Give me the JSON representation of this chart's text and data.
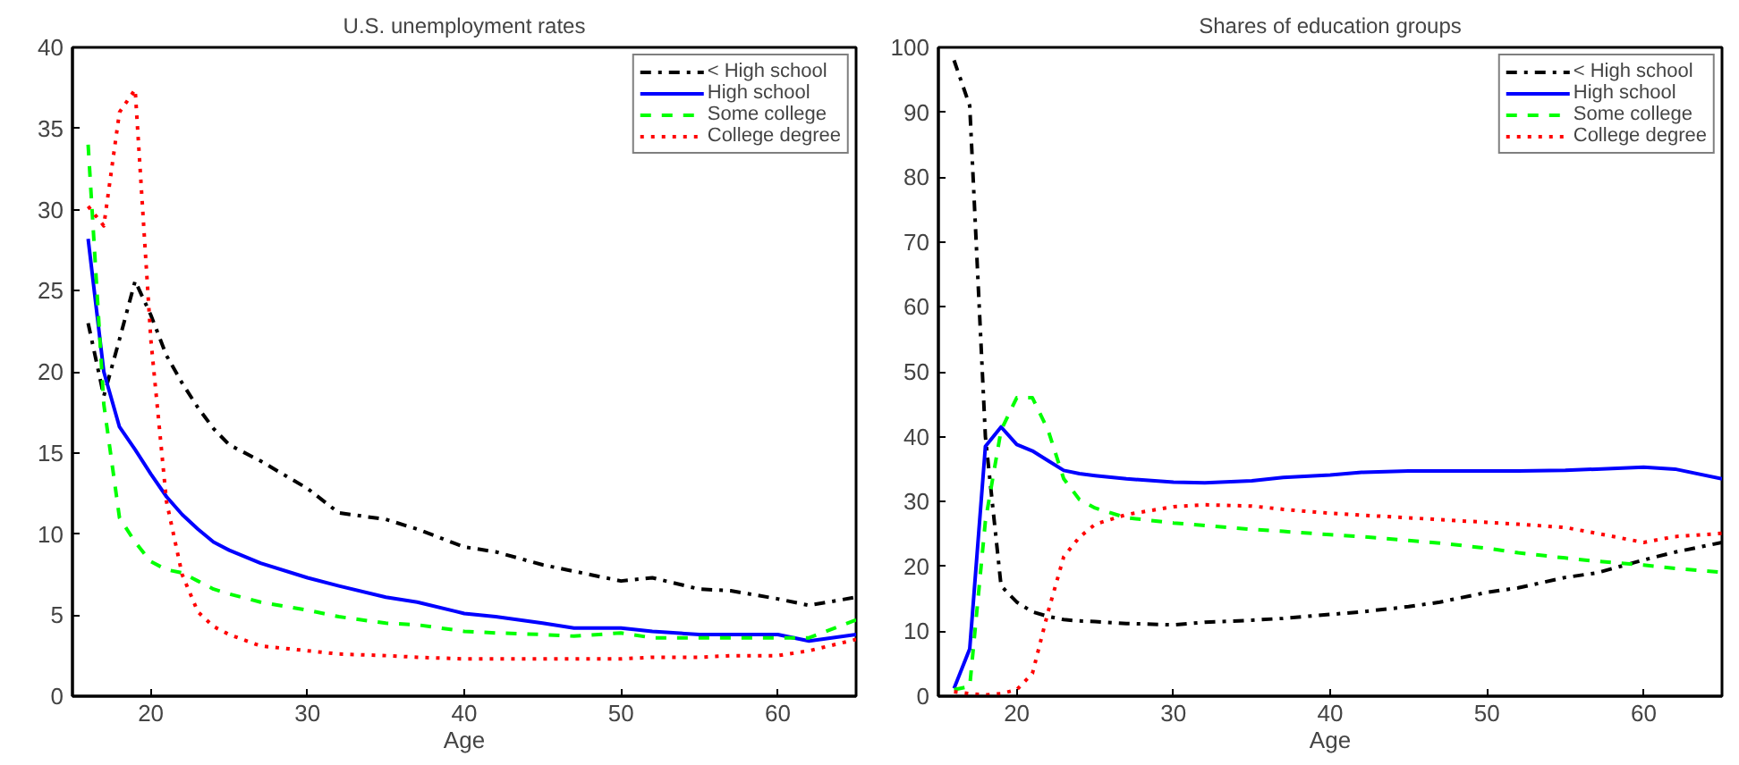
{
  "chart_data": [
    {
      "type": "line",
      "title": "U.S. unemployment rates",
      "xlabel": "Age",
      "xlim": [
        15,
        65
      ],
      "xticks": [
        20,
        30,
        40,
        50,
        60
      ],
      "ylim": [
        0,
        40
      ],
      "yticks": [
        0,
        5,
        10,
        15,
        20,
        25,
        30,
        35,
        40
      ],
      "grid": false,
      "legend": "top right",
      "x": [
        16,
        17,
        18,
        19,
        20,
        21,
        22,
        23,
        24,
        25,
        27,
        30,
        32,
        35,
        37,
        40,
        42,
        45,
        47,
        50,
        52,
        55,
        57,
        60,
        62,
        65
      ],
      "series": [
        {
          "name": "< High school",
          "color": "#000000",
          "line_style": "dashdot",
          "values": [
            23,
            18.5,
            22,
            25.6,
            23.5,
            21,
            19.3,
            17.8,
            16.5,
            15.5,
            14.5,
            12.8,
            11.3,
            10.9,
            10.3,
            9.2,
            8.9,
            8.1,
            7.7,
            7.1,
            7.3,
            6.6,
            6.5,
            6.0,
            5.6,
            6.1
          ]
        },
        {
          "name": "High school",
          "color": "#0000ff",
          "line_style": "solid",
          "values": [
            28.2,
            20,
            16.6,
            15.2,
            13.7,
            12.3,
            11.2,
            10.3,
            9.5,
            9.0,
            8.2,
            7.3,
            6.8,
            6.1,
            5.8,
            5.1,
            4.9,
            4.5,
            4.2,
            4.2,
            4.0,
            3.8,
            3.8,
            3.8,
            3.4,
            3.8
          ]
        },
        {
          "name": "Some college",
          "color": "#00ff00",
          "line_style": "dashed",
          "values": [
            34,
            18,
            11,
            9.5,
            8.3,
            7.8,
            7.6,
            7.1,
            6.6,
            6.3,
            5.8,
            5.3,
            4.9,
            4.5,
            4.4,
            4.0,
            3.9,
            3.8,
            3.7,
            3.9,
            3.6,
            3.6,
            3.6,
            3.6,
            3.6,
            4.7
          ]
        },
        {
          "name": "College degree",
          "color": "#ff0000",
          "line_style": "dotted",
          "values": [
            30.2,
            29,
            36,
            37.4,
            22,
            12,
            7.5,
            5.2,
            4.3,
            3.8,
            3.1,
            2.8,
            2.6,
            2.5,
            2.4,
            2.3,
            2.3,
            2.3,
            2.3,
            2.3,
            2.4,
            2.4,
            2.5,
            2.5,
            2.8,
            3.5
          ]
        }
      ]
    },
    {
      "type": "line",
      "title": "Shares of education groups",
      "xlabel": "Age",
      "xlim": [
        15,
        65
      ],
      "xticks": [
        20,
        30,
        40,
        50,
        60
      ],
      "ylim": [
        0,
        100
      ],
      "yticks": [
        0,
        10,
        20,
        30,
        40,
        50,
        60,
        70,
        80,
        90,
        100
      ],
      "grid": false,
      "legend": "top right",
      "x": [
        16,
        17,
        18,
        19,
        20,
        21,
        22,
        23,
        24,
        25,
        27,
        30,
        32,
        35,
        37,
        40,
        42,
        45,
        47,
        50,
        52,
        55,
        57,
        60,
        62,
        65
      ],
      "series": [
        {
          "name": "< High school",
          "color": "#000000",
          "line_style": "dashdot",
          "values": [
            98,
            91,
            40,
            17,
            14.5,
            13,
            12.3,
            11.8,
            11.6,
            11.5,
            11.2,
            11,
            11.4,
            11.7,
            12,
            12.6,
            13,
            13.8,
            14.5,
            16,
            16.7,
            18.3,
            19,
            21,
            22.2,
            23.7
          ]
        },
        {
          "name": "High school",
          "color": "#0000ff",
          "line_style": "solid",
          "values": [
            1.2,
            7.3,
            38.5,
            41.5,
            38.8,
            37.8,
            36.3,
            34.8,
            34.3,
            34.0,
            33.5,
            33,
            32.9,
            33.2,
            33.7,
            34.1,
            34.5,
            34.7,
            34.7,
            34.7,
            34.7,
            34.8,
            35,
            35.3,
            35,
            33.5
          ]
        },
        {
          "name": "Some college",
          "color": "#00ff00",
          "line_style": "dashed",
          "values": [
            1,
            1.5,
            27,
            41,
            46,
            46,
            41,
            33.5,
            30.3,
            29,
            27.5,
            26.7,
            26.3,
            25.7,
            25.4,
            24.9,
            24.6,
            24,
            23.6,
            22.8,
            22.1,
            21.3,
            20.8,
            20.2,
            19.7,
            19.1
          ]
        },
        {
          "name": "College degree",
          "color": "#ff0000",
          "line_style": "dotted",
          "values": [
            0.7,
            0.4,
            0.2,
            0.4,
            1,
            3.5,
            13,
            21.5,
            24.5,
            26.5,
            28,
            29.2,
            29.5,
            29.3,
            28.8,
            28.2,
            27.9,
            27.5,
            27.2,
            26.8,
            26.5,
            26,
            25.1,
            23.7,
            24.6,
            25.1
          ]
        }
      ]
    }
  ]
}
